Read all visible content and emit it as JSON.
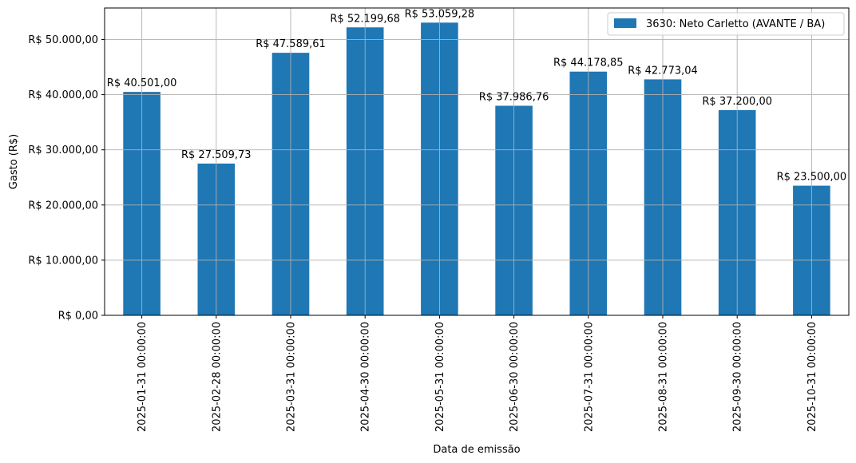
{
  "chart_data": {
    "type": "bar",
    "categories": [
      "2025-01-31 00:00:00",
      "2025-02-28 00:00:00",
      "2025-03-31 00:00:00",
      "2025-04-30 00:00:00",
      "2025-05-31 00:00:00",
      "2025-06-30 00:00:00",
      "2025-07-31 00:00:00",
      "2025-08-31 00:00:00",
      "2025-09-30 00:00:00",
      "2025-10-31 00:00:00"
    ],
    "series": [
      {
        "name": "3630: Neto Carletto (AVANTE / BA)",
        "color": "#1f77b4",
        "values": [
          40501.0,
          27509.73,
          47589.61,
          52199.68,
          53059.28,
          37986.76,
          44178.85,
          42773.04,
          37200.0,
          23500.0
        ]
      }
    ],
    "data_labels": [
      "R$ 40.501,00",
      "R$ 27.509,73",
      "R$ 47.589,61",
      "R$ 52.199,68",
      "R$ 53.059,28",
      "R$ 37.986,76",
      "R$ 44.178,85",
      "R$ 42.773,04",
      "R$ 37.200,00",
      "R$ 23.500,00"
    ],
    "title": "",
    "xlabel": "Data de emissão",
    "ylabel": "Gasto (R$)",
    "ylim": [
      0,
      55713.24
    ],
    "yticks": [
      0,
      10000,
      20000,
      30000,
      40000,
      50000
    ],
    "ytick_labels": [
      "R$ 0,00",
      "R$ 10.000,00",
      "R$ 20.000,00",
      "R$ 30.000,00",
      "R$ 40.000,00",
      "R$ 50.000,00"
    ],
    "grid": true,
    "legend_position": "top-right"
  }
}
